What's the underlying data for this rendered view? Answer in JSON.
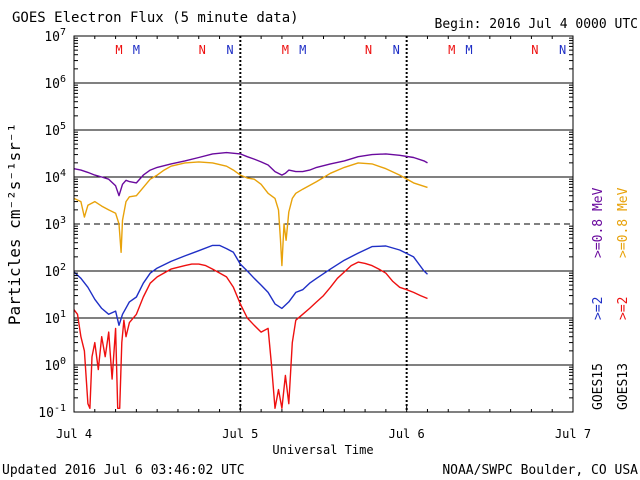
{
  "title": "GOES Electron Flux (5 minute data)",
  "begin_label": "Begin: 2016 Jul 4 0000 UTC",
  "updated_label": "Updated 2016 Jul  6 03:46:02 UTC",
  "credit_label": "NOAA/SWPC Boulder, CO USA",
  "colors": {
    "purple": "#6a0a9e",
    "orange": "#e8a20a",
    "blue": "#1f2fc6",
    "red": "#ee1010",
    "black": "#000000"
  },
  "chart_data": {
    "type": "line",
    "title": "GOES Electron Flux (5 minute data)",
    "xlabel": "Universal Time",
    "ylabel": "Particles cm⁻²s⁻¹sr⁻¹",
    "xlim": [
      0,
      72
    ],
    "ylim": [
      0.1,
      10000000
    ],
    "yscale": "log",
    "x_unit": "hours since 2016 Jul 4 0000 UTC",
    "x_ticks": [
      {
        "x": 0,
        "label": "Jul 4"
      },
      {
        "x": 24,
        "label": "Jul 5"
      },
      {
        "x": 48,
        "label": "Jul 6"
      },
      {
        "x": 72,
        "label": "Jul 7"
      }
    ],
    "y_ticks": [
      {
        "value": 0.1,
        "mantissa": "10",
        "exp": "-1"
      },
      {
        "value": 1,
        "mantissa": "10",
        "exp": "0"
      },
      {
        "value": 10,
        "mantissa": "10",
        "exp": "1"
      },
      {
        "value": 100,
        "mantissa": "10",
        "exp": "2"
      },
      {
        "value": 1000,
        "mantissa": "10",
        "exp": "3"
      },
      {
        "value": 10000,
        "mantissa": "10",
        "exp": "4"
      },
      {
        "value": 100000,
        "mantissa": "10",
        "exp": "5"
      },
      {
        "value": 1000000,
        "mantissa": "10",
        "exp": "6"
      },
      {
        "value": 10000000,
        "mantissa": "10",
        "exp": "7"
      }
    ],
    "threshold_line": {
      "value": 1000,
      "style": "dashed"
    },
    "midnight_markers": [
      24,
      48
    ],
    "noon_markers": [
      {
        "x": 6.5,
        "label": "M",
        "color": "#ee1010"
      },
      {
        "x": 9.0,
        "label": "M",
        "color": "#1f2fc6"
      },
      {
        "x": 18.5,
        "label": "N",
        "color": "#ee1010"
      },
      {
        "x": 22.5,
        "label": "N",
        "color": "#1f2fc6"
      },
      {
        "x": 30.5,
        "label": "M",
        "color": "#ee1010"
      },
      {
        "x": 33.0,
        "label": "M",
        "color": "#1f2fc6"
      },
      {
        "x": 42.5,
        "label": "N",
        "color": "#ee1010"
      },
      {
        "x": 46.5,
        "label": "N",
        "color": "#1f2fc6"
      },
      {
        "x": 54.5,
        "label": "M",
        "color": "#ee1010"
      },
      {
        "x": 57.0,
        "label": "M",
        "color": "#1f2fc6"
      },
      {
        "x": 66.5,
        "label": "N",
        "color": "#ee1010"
      },
      {
        "x": 70.5,
        "label": "N",
        "color": "#1f2fc6"
      }
    ],
    "legend_right": [
      {
        "text": ">=0.8 MeV",
        "color": "#6a0a9e"
      },
      {
        "text": ">=0.8 MeV",
        "color": "#e8a20a"
      },
      {
        "text": ">=2",
        "color": "#1f2fc6"
      },
      {
        "text": ">=2",
        "color": "#ee1010"
      },
      {
        "text": "GOES15",
        "color": "#000000"
      },
      {
        "text": "GOES13",
        "color": "#000000"
      }
    ],
    "series": [
      {
        "name": "GOES15 >=0.8 MeV",
        "color": "#6a0a9e",
        "points": [
          [
            0,
            15000
          ],
          [
            1,
            14000
          ],
          [
            2,
            12500
          ],
          [
            3,
            11000
          ],
          [
            4,
            10000
          ],
          [
            5,
            9000
          ],
          [
            6,
            6500
          ],
          [
            6.5,
            4000
          ],
          [
            7,
            7000
          ],
          [
            7.5,
            8500
          ],
          [
            8,
            8000
          ],
          [
            9,
            7500
          ],
          [
            10,
            11000
          ],
          [
            11,
            14000
          ],
          [
            12,
            16000
          ],
          [
            14,
            19000
          ],
          [
            16,
            22000
          ],
          [
            18,
            26000
          ],
          [
            20,
            31000
          ],
          [
            22,
            33000
          ],
          [
            24,
            31000
          ],
          [
            25,
            27000
          ],
          [
            26,
            24000
          ],
          [
            27,
            21000
          ],
          [
            28,
            18000
          ],
          [
            29,
            13000
          ],
          [
            30,
            11000
          ],
          [
            30.5,
            12000
          ],
          [
            31,
            14000
          ],
          [
            32,
            13000
          ],
          [
            33,
            13000
          ],
          [
            34,
            14000
          ],
          [
            35,
            16000
          ],
          [
            37,
            19000
          ],
          [
            39,
            22000
          ],
          [
            41,
            27000
          ],
          [
            43,
            30000
          ],
          [
            45,
            31000
          ],
          [
            47,
            29000
          ],
          [
            49,
            26000
          ],
          [
            50.5,
            22000
          ],
          [
            51,
            20000
          ]
        ]
      },
      {
        "name": "GOES13 >=0.8 MeV",
        "color": "#e8a20a",
        "points": [
          [
            0,
            3500
          ],
          [
            1,
            3000
          ],
          [
            1.5,
            1400
          ],
          [
            2,
            2500
          ],
          [
            3,
            3000
          ],
          [
            4,
            2400
          ],
          [
            5,
            2000
          ],
          [
            6,
            1700
          ],
          [
            6.5,
            1000
          ],
          [
            6.8,
            250
          ],
          [
            7,
            1200
          ],
          [
            7.5,
            3000
          ],
          [
            8,
            3800
          ],
          [
            9,
            4000
          ],
          [
            10,
            6000
          ],
          [
            11,
            9000
          ],
          [
            12,
            11000
          ],
          [
            13,
            14000
          ],
          [
            14,
            17000
          ],
          [
            16,
            20000
          ],
          [
            18,
            21000
          ],
          [
            20,
            20000
          ],
          [
            22,
            17000
          ],
          [
            23,
            14000
          ],
          [
            24,
            11000
          ],
          [
            25,
            9500
          ],
          [
            26,
            9000
          ],
          [
            27,
            7000
          ],
          [
            28,
            4500
          ],
          [
            29,
            3500
          ],
          [
            29.5,
            2000
          ],
          [
            29.8,
            450
          ],
          [
            30,
            130
          ],
          [
            30.3,
            1000
          ],
          [
            30.6,
            450
          ],
          [
            31,
            1800
          ],
          [
            31.5,
            3500
          ],
          [
            32,
            4500
          ],
          [
            33,
            5500
          ],
          [
            35,
            8000
          ],
          [
            37,
            12000
          ],
          [
            39,
            16000
          ],
          [
            41,
            20000
          ],
          [
            43,
            19000
          ],
          [
            45,
            15000
          ],
          [
            47,
            11000
          ],
          [
            49,
            7500
          ],
          [
            51,
            6000
          ]
        ]
      },
      {
        "name": "GOES15 >=2 MeV",
        "color": "#1f2fc6",
        "points": [
          [
            0,
            95
          ],
          [
            1,
            70
          ],
          [
            2,
            45
          ],
          [
            3,
            25
          ],
          [
            4,
            16
          ],
          [
            5,
            12
          ],
          [
            6,
            14
          ],
          [
            6.5,
            7
          ],
          [
            7,
            12
          ],
          [
            8,
            22
          ],
          [
            9,
            28
          ],
          [
            10,
            55
          ],
          [
            11,
            90
          ],
          [
            12,
            115
          ],
          [
            14,
            160
          ],
          [
            16,
            210
          ],
          [
            18,
            270
          ],
          [
            20,
            350
          ],
          [
            21,
            350
          ],
          [
            22,
            300
          ],
          [
            23,
            250
          ],
          [
            24,
            140
          ],
          [
            25,
            100
          ],
          [
            26,
            70
          ],
          [
            27,
            50
          ],
          [
            28,
            35
          ],
          [
            29,
            20
          ],
          [
            30,
            16
          ],
          [
            31,
            22
          ],
          [
            32,
            35
          ],
          [
            33,
            40
          ],
          [
            34,
            55
          ],
          [
            35,
            70
          ],
          [
            37,
            110
          ],
          [
            39,
            170
          ],
          [
            41,
            240
          ],
          [
            43,
            330
          ],
          [
            45,
            340
          ],
          [
            47,
            280
          ],
          [
            49,
            200
          ],
          [
            50.5,
            100
          ],
          [
            51,
            85
          ]
        ]
      },
      {
        "name": "GOES13 >=2 MeV",
        "color": "#ee1010",
        "points": [
          [
            0,
            15
          ],
          [
            0.5,
            12
          ],
          [
            1,
            4
          ],
          [
            1.5,
            2
          ],
          [
            2,
            0.15
          ],
          [
            2.3,
            0.12
          ],
          [
            2.6,
            1.5
          ],
          [
            3,
            3
          ],
          [
            3.5,
            0.8
          ],
          [
            4,
            4
          ],
          [
            4.5,
            1.5
          ],
          [
            5,
            5
          ],
          [
            5.5,
            0.5
          ],
          [
            6,
            6
          ],
          [
            6.3,
            0.12
          ],
          [
            6.6,
            0.12
          ],
          [
            6.9,
            3
          ],
          [
            7.2,
            9
          ],
          [
            7.5,
            4
          ],
          [
            8,
            8
          ],
          [
            9,
            12
          ],
          [
            10,
            28
          ],
          [
            11,
            55
          ],
          [
            12,
            75
          ],
          [
            14,
            110
          ],
          [
            16,
            130
          ],
          [
            17,
            140
          ],
          [
            18,
            140
          ],
          [
            19,
            130
          ],
          [
            20,
            110
          ],
          [
            22,
            75
          ],
          [
            23,
            45
          ],
          [
            24,
            20
          ],
          [
            25,
            10
          ],
          [
            26,
            7
          ],
          [
            27,
            5
          ],
          [
            28,
            6
          ],
          [
            28.5,
            1
          ],
          [
            29,
            0.12
          ],
          [
            29.5,
            0.3
          ],
          [
            30,
            0.12
          ],
          [
            30.5,
            0.6
          ],
          [
            31,
            0.15
          ],
          [
            31.5,
            3
          ],
          [
            32,
            9
          ],
          [
            33,
            12
          ],
          [
            34,
            16
          ],
          [
            35,
            22
          ],
          [
            36,
            30
          ],
          [
            37,
            45
          ],
          [
            38,
            70
          ],
          [
            39,
            95
          ],
          [
            40,
            130
          ],
          [
            41,
            155
          ],
          [
            42,
            145
          ],
          [
            43,
            130
          ],
          [
            44,
            110
          ],
          [
            45,
            90
          ],
          [
            46,
            60
          ],
          [
            47,
            45
          ],
          [
            48,
            40
          ],
          [
            49,
            35
          ],
          [
            50,
            30
          ],
          [
            51,
            26
          ]
        ]
      }
    ]
  }
}
